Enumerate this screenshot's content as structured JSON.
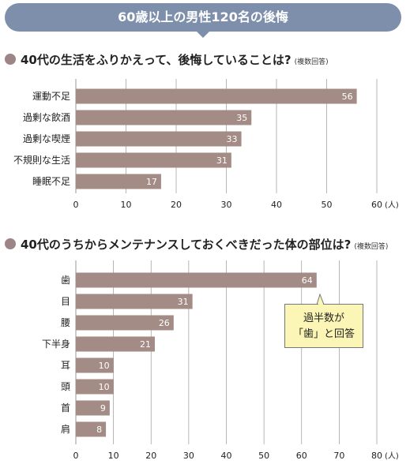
{
  "banner": {
    "title": "60歳以上の男性120名の後悔"
  },
  "colors": {
    "banner": "#7e8fab",
    "bar": "#a38b86",
    "dot": "#9c8584",
    "callout_bg": "#fbf6b6",
    "grid": "#999999"
  },
  "chart_data": [
    {
      "type": "bar",
      "orientation": "horizontal",
      "title": "40代の生活をふりかえって、後悔していることは?",
      "note": "(複数回答)",
      "categories": [
        "運動不足",
        "過剰な飲酒",
        "過剰な喫煙",
        "不規則な生活",
        "睡眠不足"
      ],
      "values": [
        56,
        35,
        33,
        31,
        17
      ],
      "xticks": [
        "0",
        "10",
        "20",
        "30",
        "40",
        "50",
        "60"
      ],
      "xlim": [
        0,
        60
      ],
      "unit": "(人)",
      "grid": true
    },
    {
      "type": "bar",
      "orientation": "horizontal",
      "title": "40代のうちからメンテナンスしておくべきだった体の部位は?",
      "note": "(複数回答)",
      "categories": [
        "歯",
        "目",
        "腰",
        "下半身",
        "耳",
        "頭",
        "首",
        "肩"
      ],
      "values": [
        64,
        31,
        26,
        21,
        10,
        10,
        9,
        8
      ],
      "xticks": [
        "0",
        "10",
        "20",
        "30",
        "40",
        "50",
        "60",
        "70",
        "80"
      ],
      "xlim": [
        0,
        80
      ],
      "unit": "(人)",
      "grid": true,
      "annotation": {
        "line1": "過半数が",
        "line2": "「歯」と回答"
      }
    }
  ]
}
